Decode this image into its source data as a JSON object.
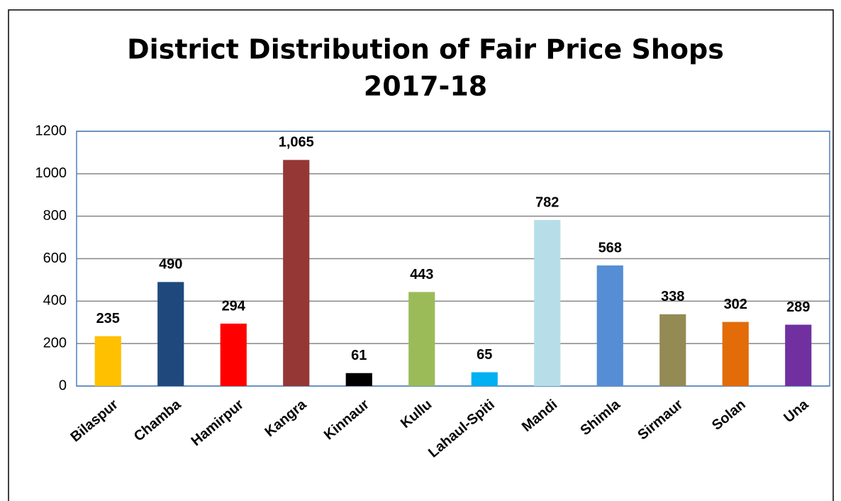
{
  "chart_data": {
    "type": "bar",
    "title": "District Distribution of Fair Price Shops",
    "subtitle": "2017-18",
    "categories": [
      "Bilaspur",
      "Chamba",
      "Hamirpur",
      "Kangra",
      "Kinnaur",
      "Kullu",
      "Lahaul-Spiti",
      "Mandi",
      "Shimla",
      "Sirmaur",
      "Solan",
      "Una"
    ],
    "values": [
      235,
      490,
      294,
      1065,
      61,
      443,
      65,
      782,
      568,
      338,
      302,
      289
    ],
    "value_labels": [
      "235",
      "490",
      "294",
      "1,065",
      "61",
      "443",
      "65",
      "782",
      "568",
      "338",
      "302",
      "289"
    ],
    "colors": [
      "#ffc000",
      "#1f497d",
      "#ff0000",
      "#953735",
      "#000000",
      "#9bbb59",
      "#00b0f0",
      "#b7dee8",
      "#558ed5",
      "#948a54",
      "#e36c09",
      "#7030a0"
    ],
    "ylim": [
      0,
      1200
    ],
    "yticks": [
      0,
      200,
      400,
      600,
      800,
      1000,
      1200
    ],
    "grid": true
  }
}
